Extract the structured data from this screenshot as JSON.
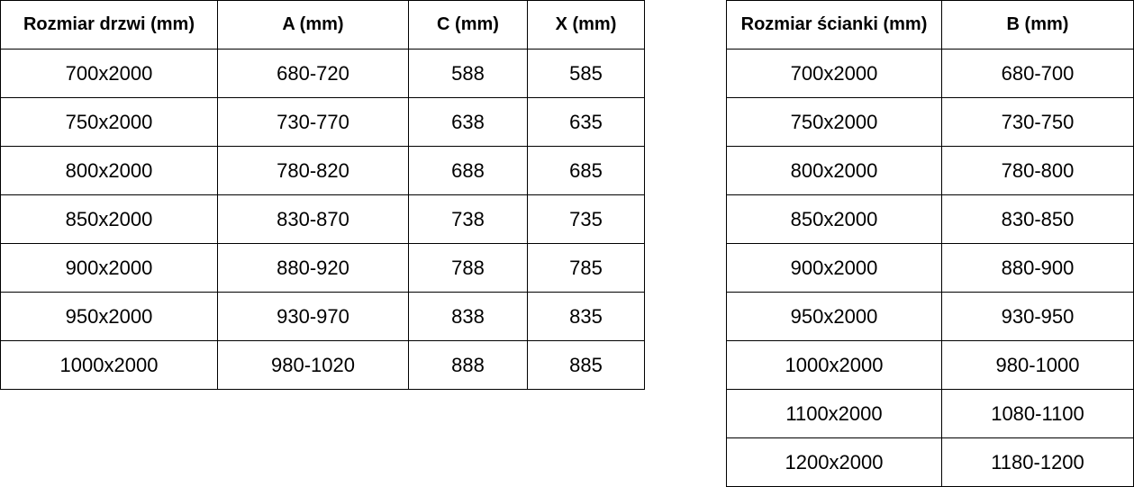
{
  "page": {
    "background_color": "#ffffff",
    "text_color": "#000000",
    "border_color": "#000000"
  },
  "left_table": {
    "name": "door-dimensions-table",
    "headers": [
      "Rozmiar drzwi (mm)",
      "A (mm)",
      "C (mm)",
      "X (mm)"
    ],
    "rows": [
      [
        "700x2000",
        "680-720",
        "588",
        "585"
      ],
      [
        "750x2000",
        "730-770",
        "638",
        "635"
      ],
      [
        "800x2000",
        "780-820",
        "688",
        "685"
      ],
      [
        "850x2000",
        "830-870",
        "738",
        "735"
      ],
      [
        "900x2000",
        "880-920",
        "788",
        "785"
      ],
      [
        "950x2000",
        "930-970",
        "838",
        "835"
      ],
      [
        "1000x2000",
        "980-1020",
        "888",
        "885"
      ]
    ]
  },
  "right_table": {
    "name": "wall-panel-dimensions-table",
    "headers": [
      "Rozmiar ścianki (mm)",
      "B (mm)"
    ],
    "rows": [
      [
        "700x2000",
        "680-700"
      ],
      [
        "750x2000",
        "730-750"
      ],
      [
        "800x2000",
        "780-800"
      ],
      [
        "850x2000",
        "830-850"
      ],
      [
        "900x2000",
        "880-900"
      ],
      [
        "950x2000",
        "930-950"
      ],
      [
        "1000x2000",
        "980-1000"
      ],
      [
        "1100x2000",
        "1080-1100"
      ],
      [
        "1200x2000",
        "1180-1200"
      ]
    ]
  }
}
